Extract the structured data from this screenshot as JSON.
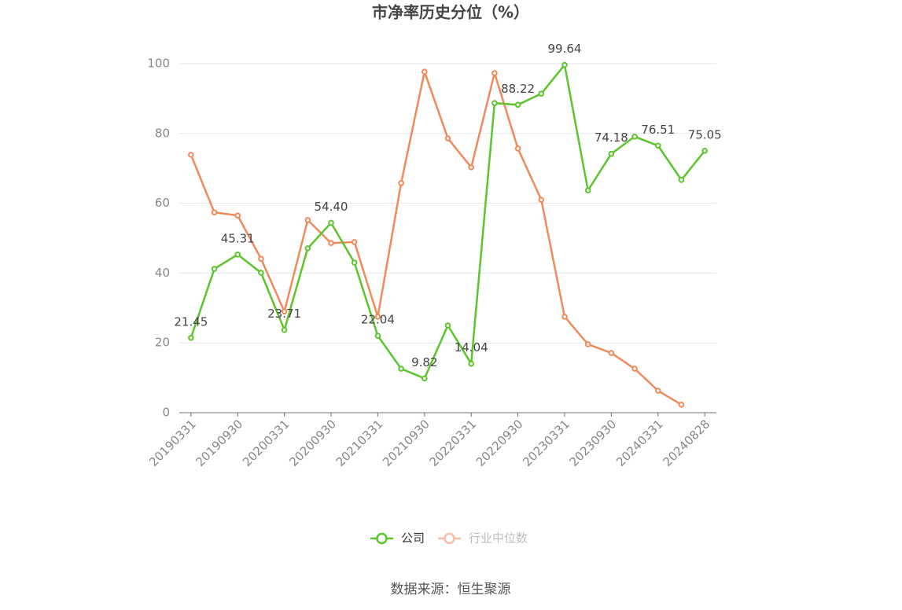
{
  "chart_data": {
    "type": "line",
    "title": "市净率历史分位（%）",
    "source": "数据来源：恒生聚源",
    "categories": [
      "20190331",
      null,
      "20190930",
      null,
      "20200331",
      null,
      "20200930",
      null,
      "20210331",
      null,
      "20210930",
      null,
      "20220331",
      null,
      "20220930",
      null,
      "20230331",
      null,
      "20230930",
      null,
      "20240331",
      null,
      "20240828"
    ],
    "series": [
      {
        "name": "公司",
        "color": "#5cc52b",
        "values": [
          21.45,
          41.2,
          45.31,
          40.1,
          23.71,
          47.1,
          54.4,
          43.0,
          22.04,
          12.6,
          9.82,
          25.0,
          14.04,
          88.7,
          88.22,
          91.4,
          99.64,
          63.7,
          74.18,
          79.1,
          76.51,
          66.7,
          75.05
        ],
        "value_labels": [
          "21.45",
          null,
          "45.31",
          null,
          "23.71",
          null,
          "54.40",
          null,
          "22.04",
          null,
          "9.82",
          null,
          "14.04",
          null,
          "88.22",
          null,
          "99.64",
          null,
          "74.18",
          null,
          "76.51",
          null,
          "75.05"
        ]
      },
      {
        "name": "行业中位数",
        "color": "#f08a5a",
        "values": [
          73.9,
          57.4,
          56.5,
          44.1,
          29.0,
          55.2,
          48.6,
          48.9,
          27.5,
          65.8,
          97.7,
          78.6,
          70.3,
          97.3,
          75.7,
          61.0,
          27.5,
          19.6,
          17.1,
          12.6,
          6.3,
          2.3,
          null
        ]
      }
    ],
    "ylim": [
      0,
      100
    ],
    "yticks": [
      0,
      20,
      40,
      60,
      80,
      100
    ],
    "grid": true
  }
}
